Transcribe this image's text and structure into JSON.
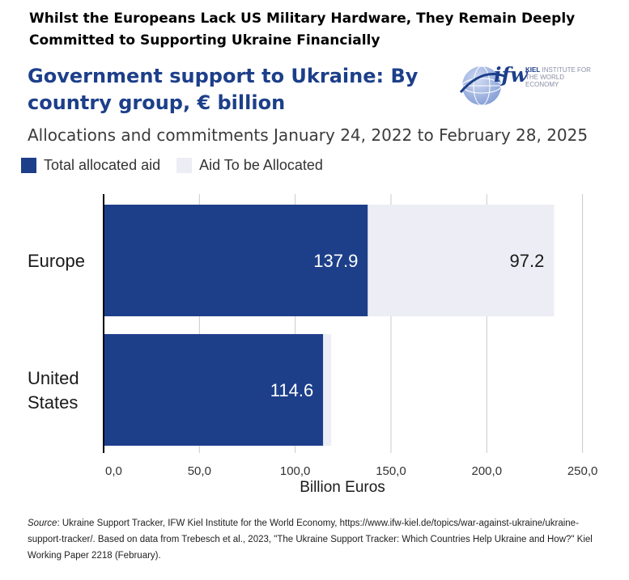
{
  "headline": "Whilst the Europeans Lack US Military Hardware, They Remain Deeply Committed to Supporting Ukraine Financially",
  "logo": {
    "mark": "ifw",
    "line1": "KIEL",
    "line2": "INSTITUTE FOR",
    "line3": "THE WORLD ECONOMY"
  },
  "source": {
    "label": "Source",
    "text": ": Ukraine Support Tracker, IFW Kiel Institute for the World Economy,  https://www.ifw-kiel.de/topics/war-against-ukraine/ukraine-support-tracker/. Based on data from Trebesch et al., 2023, \"The Ukraine Support Tracker: Which Countries Help Ukraine and How?\" Kiel Working Paper 2218 (February)."
  },
  "chart_data": {
    "type": "bar",
    "orientation": "horizontal",
    "stacked": true,
    "title": "Government support to Ukraine: By country group, € billion",
    "subtitle": "Allocations and commitments January 24, 2022 to February 28, 2025",
    "categories": [
      "Europe",
      "United States"
    ],
    "category_lines": [
      [
        "Europe"
      ],
      [
        "United",
        "States"
      ]
    ],
    "series": [
      {
        "name": "Total allocated aid",
        "values": [
          137.9,
          114.6
        ],
        "labels": [
          "137.9",
          "114.6"
        ],
        "color": "#1d3f8a"
      },
      {
        "name": "Aid To be Allocated",
        "values": [
          97.2,
          4.2
        ],
        "labels": [
          "97.2",
          ""
        ],
        "color": "#ededf5"
      }
    ],
    "xlabel": "Billion Euros",
    "xlim": [
      0,
      262
    ],
    "ticks": [
      0,
      50,
      100,
      150,
      200,
      250
    ],
    "tick_labels": [
      "0,0",
      "50,0",
      "100,0",
      "150,0",
      "200,0",
      "250,0"
    ],
    "grid": true,
    "legend_position": "top-left"
  }
}
